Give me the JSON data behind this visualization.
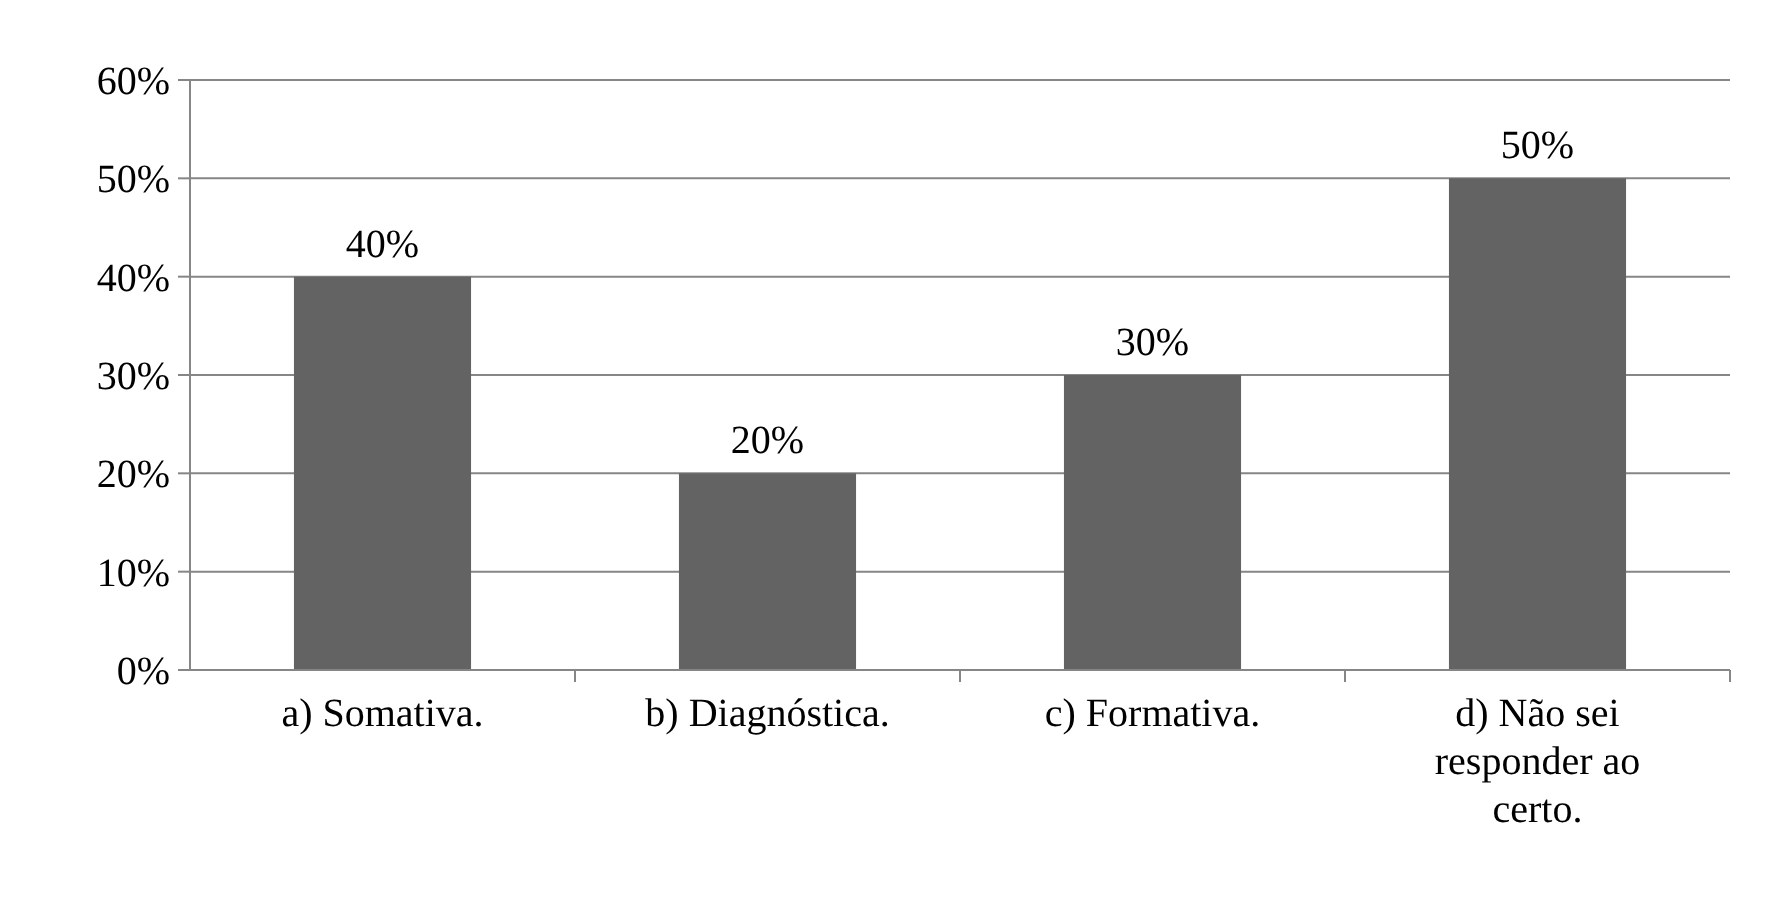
{
  "chart_data": {
    "type": "bar",
    "categories": [
      "a) Somativa.",
      "b) Diagnóstica.",
      "c) Formativa.",
      "d) Não sei responder ao certo."
    ],
    "values": [
      40,
      20,
      30,
      50
    ],
    "color": "#636363",
    "value_labels": [
      "40%",
      "20%",
      "30%",
      "50%"
    ],
    "ylim": [
      0,
      60
    ],
    "yticks": [
      {
        "value": 0,
        "label": "0%"
      },
      {
        "value": 10,
        "label": "10%"
      },
      {
        "value": 20,
        "label": "20%"
      },
      {
        "value": 30,
        "label": "30%"
      },
      {
        "value": 40,
        "label": "40%"
      },
      {
        "value": 50,
        "label": "50%"
      },
      {
        "value": 60,
        "label": "60%"
      }
    ],
    "grid": "y"
  }
}
